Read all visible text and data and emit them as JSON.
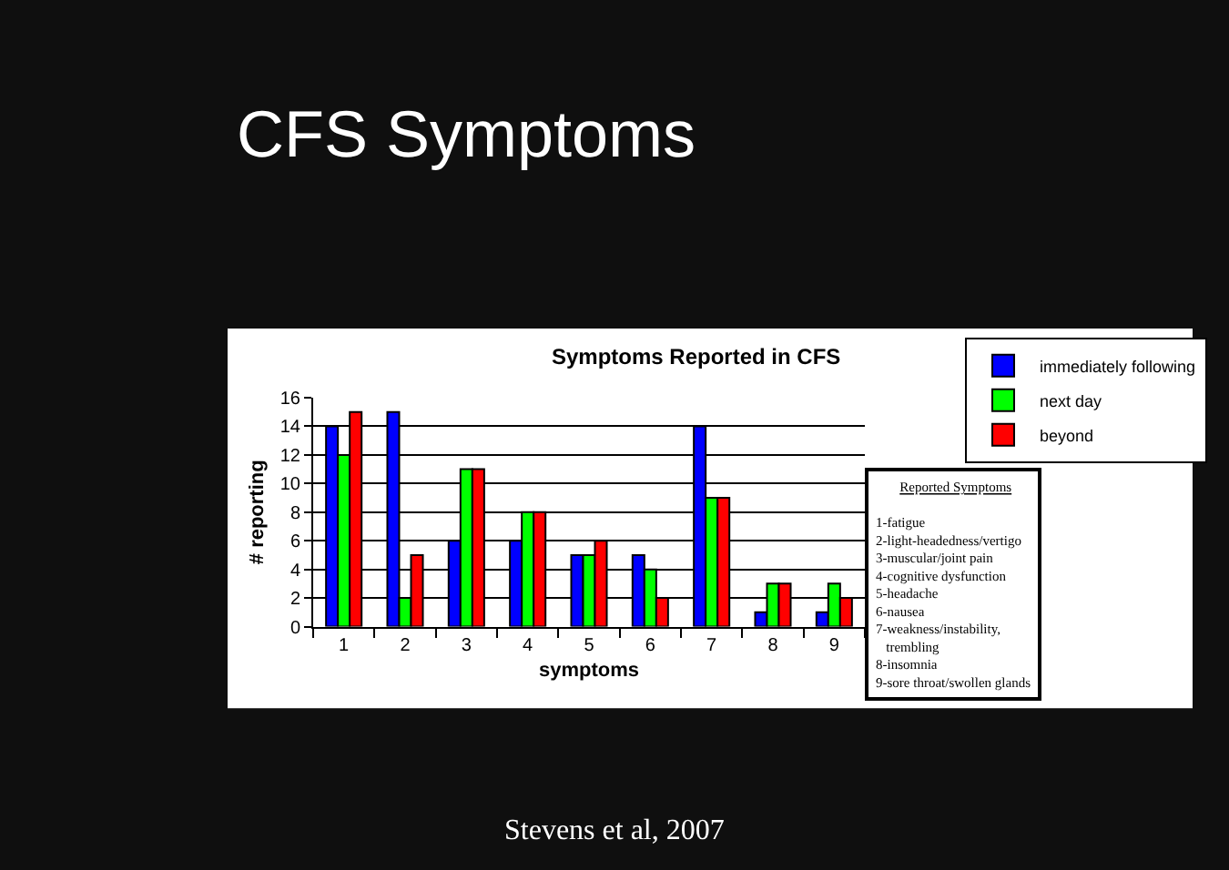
{
  "chart_data": {
    "type": "bar",
    "title": "CFS Symptoms",
    "subtitle": "Symptoms Reported in CFS",
    "xlabel": "symptoms",
    "ylabel": "# reporting",
    "categories": [
      "1",
      "2",
      "3",
      "4",
      "5",
      "6",
      "7",
      "8",
      "9"
    ],
    "series": [
      {
        "name": "immediately following",
        "color": "#0000ff",
        "values": [
          14,
          15,
          6,
          6,
          5,
          5,
          14,
          1,
          1
        ]
      },
      {
        "name": "next day",
        "color": "#00ff00",
        "values": [
          12,
          2,
          11,
          8,
          5,
          4,
          9,
          3,
          3
        ]
      },
      {
        "name": "beyond",
        "color": "#ff0000",
        "values": [
          15,
          5,
          11,
          8,
          6,
          2,
          9,
          3,
          2
        ]
      }
    ],
    "ylim": [
      0,
      16
    ],
    "yticks": [
      0,
      2,
      4,
      6,
      8,
      10,
      12,
      14,
      16
    ],
    "grid": "y",
    "legend": "top right",
    "annotations": [
      "Reported Symptoms\n\n1-fatigue\n2-light-headedness/vertigo\n3-muscular/joint pain\n4-cognitive dysfunction\n5-headache\n6-nausea\n7-weakness/instability,\n   trembling\n8-insomnia\n9-sore throat/swollen glands",
      "Stevens et al, 2007"
    ]
  }
}
